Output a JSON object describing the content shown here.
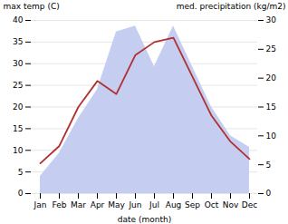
{
  "chart_data": {
    "type": "line",
    "categories": [
      "Jan",
      "Feb",
      "Mar",
      "Apr",
      "May",
      "Jun",
      "Jul",
      "Aug",
      "Sep",
      "Oct",
      "Nov",
      "Dec"
    ],
    "series": [
      {
        "type": "area",
        "axis": "y2",
        "color": "#c5cdf0",
        "values": [
          3,
          7,
          13,
          18,
          28,
          29,
          22,
          29,
          22,
          15,
          10,
          8
        ]
      },
      {
        "type": "line",
        "color": "#b03030",
        "values": [
          7,
          11,
          20,
          26,
          23,
          32,
          35,
          36,
          27,
          18,
          12,
          8
        ]
      }
    ],
    "xlabel": "date (month)",
    "ylabel": "max temp (C)",
    "y2label": "med. precipitation (kg/m2)",
    "ylim": [
      0,
      40
    ],
    "yticks": [
      0,
      5,
      10,
      15,
      20,
      25,
      30,
      35,
      40
    ],
    "y2lim": [
      0,
      30
    ],
    "y2ticks": [
      0,
      5,
      10,
      15,
      20,
      25,
      30
    ],
    "grid": true
  }
}
